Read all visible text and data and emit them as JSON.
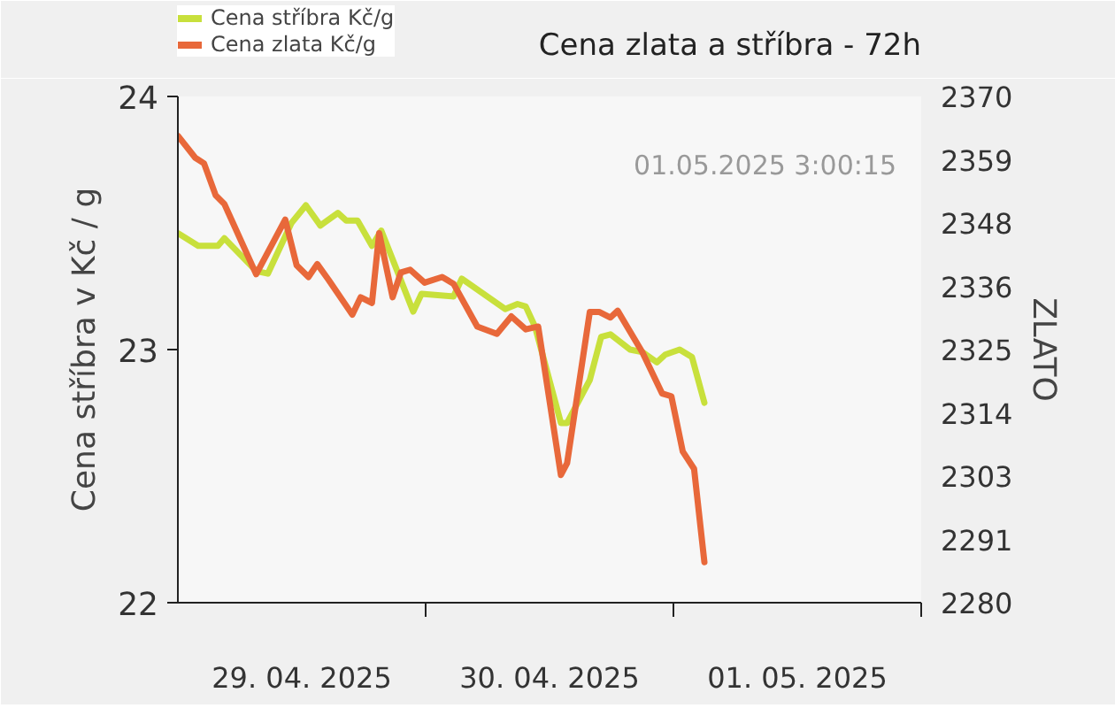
{
  "chart_data": {
    "type": "line",
    "title": "Cena zlata a stříbra - 72h",
    "ylabel": "Cena stříbra v Kč / g",
    "y2label": "ZLATO",
    "annotations": [
      "01.05.2025 3:00:15"
    ],
    "xlim": [
      "2025-04-29T00:00",
      "2025-05-02T00:00"
    ],
    "xticks": [
      {
        "value": "2025-04-29T12:00",
        "label": "29. 04. 2025"
      },
      {
        "value": "2025-04-30T00:00",
        "label": null
      },
      {
        "value": "2025-04-30T12:00",
        "label": "30. 04. 2025"
      },
      {
        "value": "2025-05-01T00:00",
        "label": null
      },
      {
        "value": "2025-05-01T12:00",
        "label": "01. 05. 2025"
      },
      {
        "value": "2025-05-02T00:00",
        "label": null
      }
    ],
    "ylim": [
      22,
      24
    ],
    "yticks": [
      22,
      23,
      24
    ],
    "y2lim": [
      2280,
      2370
    ],
    "y2ticks": [
      2280,
      {
        "value": 2291.25,
        "label": "2291"
      },
      {
        "value": 2302.5,
        "label": "2303"
      },
      {
        "value": 2313.75,
        "label": "2314"
      },
      2325,
      {
        "value": 2336.25,
        "label": "2336"
      },
      {
        "value": 2347.5,
        "label": "2348"
      },
      {
        "value": 2358.75,
        "label": "2359"
      },
      2370
    ],
    "grid": false,
    "legend": "top left",
    "line_style": "solid",
    "marker": "none",
    "series": [
      {
        "name": "Cena stříbra Kč/g",
        "color": "#c8e03c",
        "x": [
          "2025-04-29T00:00",
          "2025-04-29T01:58",
          "2025-04-29T03:53",
          "2025-04-29T04:30",
          "2025-04-29T07:36",
          "2025-04-29T08:43",
          "2025-04-29T11:00",
          "2025-04-29T12:24",
          "2025-04-29T13:48",
          "2025-04-29T15:30",
          "2025-04-29T16:18",
          "2025-04-29T17:24",
          "2025-04-29T18:48",
          "2025-04-29T19:42",
          "2025-04-29T22:48",
          "2025-04-29T23:36",
          "2025-04-30T02:42",
          "2025-04-30T03:30",
          "2025-04-30T07:42",
          "2025-04-30T08:54",
          "2025-04-30T09:42",
          "2025-04-30T10:36",
          "2025-04-30T13:06",
          "2025-04-30T13:42",
          "2025-04-30T15:54",
          "2025-04-30T17:00",
          "2025-04-30T17:54",
          "2025-04-30T19:48",
          "2025-04-30T21:00",
          "2025-04-30T22:24",
          "2025-04-30T23:12",
          "2025-05-01T00:36",
          "2025-05-01T01:48",
          "2025-05-01T03:00"
        ],
        "values": [
          23.46,
          23.41,
          23.41,
          23.44,
          23.31,
          23.3,
          23.5,
          23.57,
          23.49,
          23.54,
          23.51,
          23.51,
          23.41,
          23.47,
          23.15,
          23.22,
          23.21,
          23.28,
          23.16,
          23.18,
          23.17,
          23.09,
          22.71,
          22.71,
          22.88,
          23.05,
          23.06,
          23.0,
          22.99,
          22.95,
          22.98,
          23.0,
          22.97,
          22.79
        ]
      },
      {
        "name": "Cena zlata Kč/g",
        "color": "#e8683a",
        "axis": "y2",
        "x": [
          "2025-04-29T00:00",
          "2025-04-29T01:41",
          "2025-04-29T02:32",
          "2025-04-29T03:40",
          "2025-04-29T04:30",
          "2025-04-29T07:35",
          "2025-04-29T10:24",
          "2025-04-29T11:30",
          "2025-04-29T12:39",
          "2025-04-29T13:30",
          "2025-04-29T14:36",
          "2025-04-29T16:54",
          "2025-04-29T17:42",
          "2025-04-29T18:48",
          "2025-04-29T19:30",
          "2025-04-29T20:48",
          "2025-04-29T21:36",
          "2025-04-29T22:30",
          "2025-04-29T23:54",
          "2025-04-30T01:36",
          "2025-04-30T02:42",
          "2025-04-30T05:00",
          "2025-04-30T06:54",
          "2025-04-30T08:18",
          "2025-04-30T09:42",
          "2025-04-30T10:54",
          "2025-04-30T13:06",
          "2025-04-30T13:42",
          "2025-04-30T15:54",
          "2025-04-30T16:48",
          "2025-04-30T17:54",
          "2025-04-30T18:36",
          "2025-04-30T21:00",
          "2025-04-30T22:54",
          "2025-04-30T23:48",
          "2025-05-01T00:54",
          "2025-05-01T02:00",
          "2025-05-01T03:00"
        ],
        "values": [
          2363,
          2359.1,
          2358.1,
          2352.4,
          2350.9,
          2338.4,
          2348.1,
          2340.0,
          2337.9,
          2340.2,
          2337.4,
          2331.2,
          2334.3,
          2333.3,
          2345.7,
          2334.3,
          2338.7,
          2339.2,
          2336.9,
          2337.9,
          2336.7,
          2329.1,
          2327.8,
          2330.9,
          2328.6,
          2329.1,
          2302.7,
          2304.8,
          2331.7,
          2331.7,
          2330.7,
          2331.9,
          2324.5,
          2317.2,
          2316.7,
          2306.9,
          2303.8,
          2287.2
        ]
      }
    ]
  }
}
